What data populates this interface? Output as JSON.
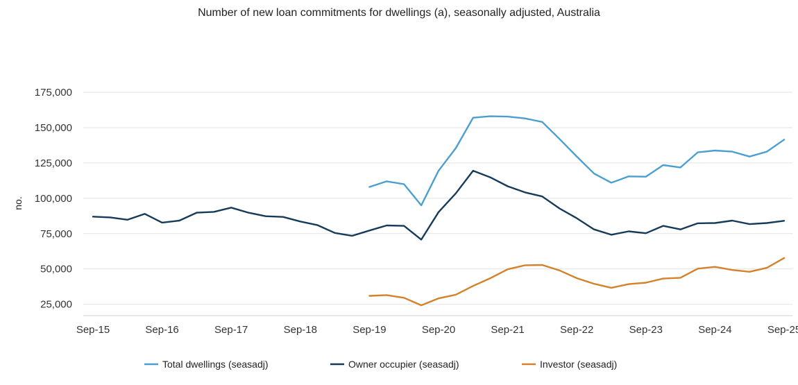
{
  "chart_data": {
    "type": "line",
    "title": "Number of new loan commitments for dwellings (a), seasonally adjusted, Australia",
    "xlabel": "",
    "ylabel": "no.",
    "ylim": [
      17000,
      175000
    ],
    "yticks": [
      25000,
      50000,
      75000,
      100000,
      125000,
      150000,
      175000
    ],
    "ytick_labels": [
      "25,000",
      "50,000",
      "75,000",
      "100,000",
      "125,000",
      "150,000",
      "175,000"
    ],
    "xticks": [
      "Sep-15",
      "Sep-16",
      "Sep-17",
      "Sep-18",
      "Sep-19",
      "Sep-20",
      "Sep-21",
      "Sep-22",
      "Sep-23",
      "Sep-24",
      "Sep-25"
    ],
    "x": [
      "Sep-15",
      "Dec-15",
      "Mar-16",
      "Jun-16",
      "Sep-16",
      "Dec-16",
      "Mar-17",
      "Jun-17",
      "Sep-17",
      "Dec-17",
      "Mar-18",
      "Jun-18",
      "Sep-18",
      "Dec-18",
      "Mar-19",
      "Jun-19",
      "Sep-19",
      "Dec-19",
      "Mar-20",
      "Jun-20",
      "Sep-20",
      "Dec-20",
      "Mar-21",
      "Jun-21",
      "Sep-21",
      "Dec-21",
      "Mar-22",
      "Jun-22",
      "Sep-22",
      "Dec-22",
      "Mar-23",
      "Jun-23",
      "Sep-23",
      "Dec-23",
      "Mar-24",
      "Jun-24",
      "Sep-24",
      "Dec-24",
      "Mar-25",
      "Jun-25",
      "Sep-25"
    ],
    "grid": true,
    "legend_position": "bottom",
    "series": [
      {
        "name": "Total dwellings (seasadj)",
        "color": "#4a9fd0",
        "values": [
          null,
          null,
          null,
          null,
          null,
          null,
          null,
          null,
          null,
          null,
          null,
          null,
          null,
          null,
          null,
          null,
          108000,
          112000,
          110000,
          95000,
          119500,
          135500,
          157000,
          158000,
          157800,
          156500,
          154000,
          142000,
          129500,
          117500,
          111000,
          115500,
          115300,
          123500,
          121800,
          132500,
          133800,
          133000,
          129500,
          133000,
          141500
        ]
      },
      {
        "name": "Owner occupier (seasadj)",
        "color": "#163a59",
        "values": [
          87000,
          86500,
          84800,
          89000,
          82800,
          84200,
          89800,
          90400,
          93400,
          89800,
          87300,
          86800,
          83600,
          81000,
          75500,
          73500,
          77200,
          80800,
          80500,
          70800,
          90200,
          103500,
          119500,
          114800,
          108500,
          104200,
          101300,
          92800,
          85900,
          78000,
          74200,
          76600,
          75300,
          80500,
          78000,
          82300,
          82500,
          84200,
          81700,
          82500,
          84100
        ]
      },
      {
        "name": "Investor (seasadj)",
        "color": "#d4812c",
        "values": [
          null,
          null,
          null,
          null,
          null,
          null,
          null,
          null,
          null,
          null,
          null,
          null,
          null,
          null,
          null,
          null,
          31000,
          31500,
          29600,
          24300,
          29200,
          31800,
          38000,
          43500,
          49800,
          52600,
          52800,
          49000,
          43500,
          39500,
          36700,
          39300,
          40300,
          43200,
          43800,
          50200,
          51500,
          49300,
          48000,
          50800,
          57800
        ]
      }
    ]
  }
}
